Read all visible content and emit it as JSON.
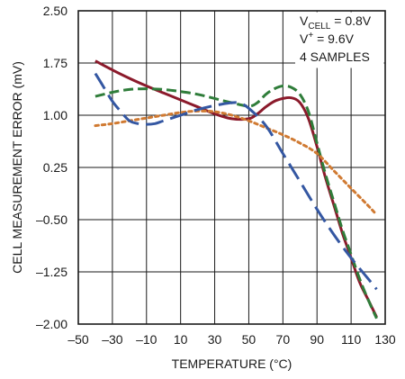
{
  "chart_data": {
    "type": "line",
    "xlabel": "TEMPERATURE (°C)",
    "ylabel": "CELL MEASUREMENT ERROR (mV)",
    "xlim": [
      -50,
      130
    ],
    "ylim": [
      -2.0,
      2.5
    ],
    "grid": true,
    "x_ticks": [
      -50,
      -30,
      -10,
      10,
      30,
      50,
      70,
      90,
      110,
      130
    ],
    "x_tick_labels": [
      "–50",
      "–30",
      "–10",
      "10",
      "30",
      "50",
      "70",
      "90",
      "110",
      "130"
    ],
    "y_ticks": [
      2.5,
      1.75,
      1.0,
      0.25,
      -0.5,
      -1.25,
      -2.0
    ],
    "y_tick_labels": [
      "2.50",
      "1.75",
      "1.00",
      "0.25",
      "–0.50",
      "–1.25",
      "–2.00"
    ],
    "annotations": [
      {
        "main": "V",
        "sub": "CELL",
        "rest": " = 0.8V"
      },
      {
        "main": "V",
        "sup": "+",
        "rest": " = 9.6V"
      },
      {
        "main": "4 SAMPLES"
      }
    ],
    "series": [
      {
        "color": "#8b1a2b",
        "dash": "solid",
        "x": [
          -40,
          -30,
          -20,
          -10,
          0,
          10,
          20,
          30,
          40,
          50,
          55,
          60,
          65,
          70,
          75,
          80,
          85,
          90,
          95,
          100,
          105,
          110,
          115,
          120,
          125
        ],
        "y": [
          1.78,
          1.65,
          1.53,
          1.42,
          1.32,
          1.22,
          1.12,
          1.02,
          0.95,
          0.95,
          1.02,
          1.12,
          1.2,
          1.24,
          1.25,
          1.18,
          0.95,
          0.55,
          0.1,
          -0.3,
          -0.7,
          -1.05,
          -1.4,
          -1.65,
          -1.9
        ]
      },
      {
        "color": "#2f7d3a",
        "dash": "dashed",
        "x": [
          -40,
          -30,
          -20,
          -10,
          0,
          10,
          20,
          30,
          40,
          50,
          55,
          60,
          65,
          70,
          75,
          80,
          85,
          90,
          95,
          100,
          105,
          110,
          115,
          120,
          125
        ],
        "y": [
          1.27,
          1.33,
          1.37,
          1.38,
          1.37,
          1.34,
          1.3,
          1.24,
          1.18,
          1.13,
          1.18,
          1.3,
          1.38,
          1.42,
          1.4,
          1.3,
          1.05,
          0.6,
          0.15,
          -0.25,
          -0.65,
          -1.0,
          -1.35,
          -1.65,
          -1.92
        ]
      },
      {
        "color": "#d07a32",
        "dash": "dotted",
        "x": [
          -40,
          -30,
          -20,
          -10,
          0,
          10,
          20,
          30,
          40,
          50,
          60,
          70,
          80,
          90,
          100,
          110,
          120,
          125
        ],
        "y": [
          0.85,
          0.88,
          0.92,
          0.96,
          1.0,
          1.04,
          1.06,
          1.05,
          1.0,
          0.92,
          0.82,
          0.72,
          0.6,
          0.45,
          0.2,
          -0.05,
          -0.3,
          -0.43
        ]
      },
      {
        "color": "#3457a2",
        "dash": "longdash",
        "x": [
          -40,
          -35,
          -30,
          -25,
          -20,
          -15,
          -10,
          -5,
          0,
          10,
          20,
          30,
          40,
          45,
          50,
          60,
          70,
          80,
          90,
          100,
          110,
          120,
          125
        ],
        "y": [
          1.6,
          1.4,
          1.2,
          1.05,
          0.92,
          0.88,
          0.87,
          0.88,
          0.92,
          1.0,
          1.08,
          1.14,
          1.18,
          1.17,
          1.1,
          0.85,
          0.45,
          0.05,
          -0.35,
          -0.72,
          -1.05,
          -1.35,
          -1.5
        ]
      }
    ]
  }
}
